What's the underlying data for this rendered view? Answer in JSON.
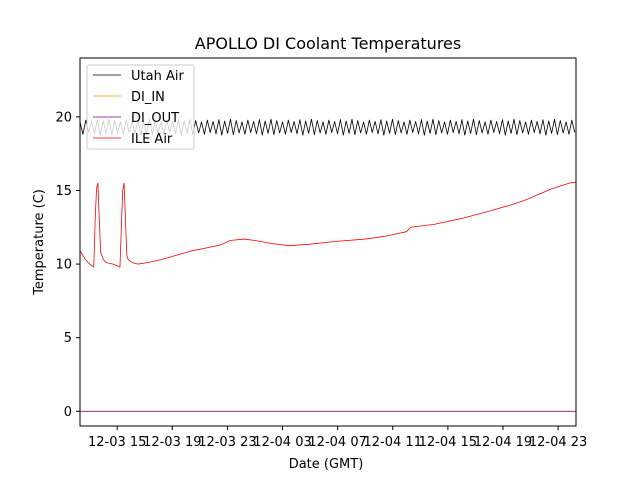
{
  "chart_data": {
    "type": "line",
    "title": "APOLLO DI Coolant Temperatures",
    "xlabel": "Date (GMT)",
    "ylabel": "Temperature (C)",
    "xlim_hours": [
      -10.7,
      25.3
    ],
    "ylim": [
      -1,
      24
    ],
    "x_ticks": [
      {
        "label": "12-03 15",
        "hour": -8
      },
      {
        "label": "12-03 19",
        "hour": -4
      },
      {
        "label": "12-03 23",
        "hour": 0
      },
      {
        "label": "12-04 03",
        "hour": 4
      },
      {
        "label": "12-04 07",
        "hour": 8
      },
      {
        "label": "12-04 11",
        "hour": 12
      },
      {
        "label": "12-04 15",
        "hour": 16
      },
      {
        "label": "12-04 19",
        "hour": 20
      },
      {
        "label": "12-04 23",
        "hour": 24
      }
    ],
    "y_ticks": [
      0,
      5,
      10,
      15,
      20
    ],
    "legend_position": "top-left",
    "series": [
      {
        "name": "Utah Air",
        "color": "#000000",
        "style": "oscillation",
        "center": 19.3,
        "amplitude": 0.45,
        "period_hours": 0.42,
        "x": [
          -10.7,
          25.3
        ]
      },
      {
        "name": "DI_IN",
        "color": "#d4b000",
        "x": [
          -10.7,
          25.3
        ],
        "y": [
          0,
          0
        ]
      },
      {
        "name": "DI_OUT",
        "color": "#800080",
        "x": [
          -10.7,
          25.3
        ],
        "y": [
          0,
          0
        ]
      },
      {
        "name": "ILE Air",
        "color": "#ff0000",
        "x": [
          -10.7,
          -10.3,
          -10.0,
          -9.7,
          -9.6,
          -9.5,
          -9.4,
          -9.3,
          -9.2,
          -9.0,
          -8.8,
          -8.3,
          -7.8,
          -7.7,
          -7.6,
          -7.5,
          -7.4,
          -7.3,
          -7.2,
          -6.9,
          -6.5,
          -5.8,
          -4.8,
          -3.7,
          -2.6,
          -1.5,
          -0.5,
          0.2,
          1.2,
          2.0,
          3.2,
          4.5,
          6.0,
          8.0,
          10.0,
          11.5,
          12.5,
          13.0,
          13.3,
          15.0,
          17.0,
          19.0,
          20.5,
          21.5,
          22.5,
          23.5,
          24.3,
          25.0,
          25.3
        ],
        "y": [
          10.9,
          10.3,
          10.0,
          9.8,
          13.0,
          15.1,
          15.5,
          13.0,
          10.8,
          10.3,
          10.1,
          10.0,
          9.8,
          12.5,
          15.0,
          15.5,
          13.0,
          10.6,
          10.3,
          10.1,
          10.0,
          10.1,
          10.3,
          10.6,
          10.9,
          11.1,
          11.3,
          11.6,
          11.7,
          11.6,
          11.4,
          11.25,
          11.35,
          11.55,
          11.7,
          11.9,
          12.1,
          12.2,
          12.5,
          12.7,
          13.1,
          13.6,
          14.0,
          14.3,
          14.7,
          15.1,
          15.35,
          15.55,
          15.55
        ]
      }
    ]
  }
}
